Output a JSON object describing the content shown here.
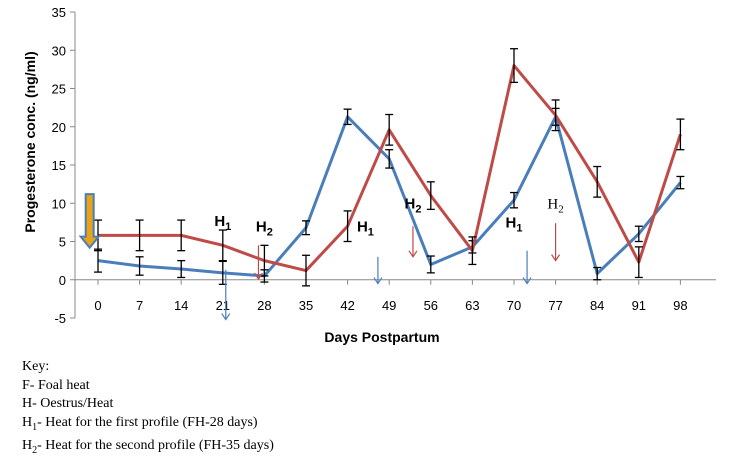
{
  "chart_data": {
    "type": "line",
    "xlabel": "Days Postpartum",
    "ylabel": "Progesterone conc. (ng/ml)",
    "ylim": [
      -5,
      35
    ],
    "yticks": [
      "-5",
      "0",
      "5",
      "10",
      "15",
      "20",
      "25",
      "30",
      "35"
    ],
    "categories": [
      "0",
      "7",
      "14",
      "21",
      "28",
      "35",
      "42",
      "49",
      "56",
      "63",
      "70",
      "77",
      "84",
      "91",
      "98"
    ],
    "grid": false,
    "series": [
      {
        "name": "First profile (FH-28 days)",
        "color": "#4a7ebb",
        "values": [
          2.5,
          1.8,
          1.4,
          0.9,
          0.5,
          6.8,
          21.3,
          15.8,
          2.0,
          4.3,
          10.4,
          21.3,
          0.8,
          6.0,
          12.7
        ],
        "err": [
          1.5,
          1.2,
          1.1,
          1.5,
          0.8,
          0.9,
          1.0,
          1.2,
          1.1,
          0.8,
          1.0,
          1.1,
          0.8,
          1.0,
          0.8
        ]
      },
      {
        "name": "Second profile (FH-35 days)",
        "color": "#be4b48",
        "values": [
          5.8,
          5.8,
          5.8,
          4.5,
          2.5,
          1.2,
          7.0,
          19.6,
          11.0,
          3.8,
          28.0,
          21.5,
          12.8,
          2.3,
          19.0
        ],
        "err": [
          2.0,
          2.0,
          2.0,
          2.0,
          2.0,
          2.0,
          2.0,
          2.0,
          1.8,
          1.8,
          2.2,
          2.0,
          2.0,
          2.0,
          2.0
        ]
      }
    ],
    "annotations": [
      {
        "id": "h1-a",
        "main": "H",
        "sub": "1",
        "style": "bold",
        "color": "#000000",
        "x": 21,
        "y": 7.0
      },
      {
        "id": "h2-a",
        "main": "H",
        "sub": "2",
        "style": "bold",
        "color": "#000000",
        "x": 28,
        "y": 6.3
      },
      {
        "id": "h1-b",
        "main": "H",
        "sub": "1",
        "style": "bold",
        "color": "#000000",
        "x": 45,
        "y": 6.3
      },
      {
        "id": "h2-b",
        "main": "H",
        "sub": "2",
        "style": "bold",
        "color": "#000000",
        "x": 53,
        "y": 9.3
      },
      {
        "id": "h1-c",
        "main": "H",
        "sub": "1",
        "style": "bold",
        "color": "#000000",
        "x": 70,
        "y": 6.8
      },
      {
        "id": "h2-c",
        "main": "H",
        "sub": "2",
        "style": "normal",
        "color": "#000000",
        "x": 77,
        "y": 9.3
      }
    ],
    "event_arrows": [
      {
        "id": "blue-arrow-21",
        "color": "#4a7ebb",
        "x": 21.5,
        "y_top": 1.3,
        "y_bottom": -5.2
      },
      {
        "id": "red-arrow-28",
        "color": "#be4b48",
        "x": 27.0,
        "y_top": 4.5,
        "y_bottom": 0.1
      },
      {
        "id": "blue-arrow-47",
        "color": "#4a7ebb",
        "x": 47.1,
        "y_top": 3.0,
        "y_bottom": -0.5
      },
      {
        "id": "red-arrow-53",
        "color": "#be4b48",
        "x": 53.0,
        "y_top": 7.0,
        "y_bottom": 3.0
      },
      {
        "id": "blue-arrow-72",
        "color": "#4a7ebb",
        "x": 72.2,
        "y_top": 3.8,
        "y_bottom": -0.5
      },
      {
        "id": "red-arrow-77",
        "color": "#be4b48",
        "x": 77.0,
        "y_top": 7.4,
        "y_bottom": 2.5
      }
    ],
    "foal_heat_marker": {
      "color": "#e8a317",
      "outline": "#4a7ebb",
      "x": -1.4,
      "y_top": 11.2,
      "y_bottom": 4.2
    }
  },
  "key": {
    "title": "Key:",
    "lines": [
      {
        "main": "F- Foal heat",
        "sub": "",
        "rest": ""
      },
      {
        "main": "H- Oestrus/Heat",
        "sub": "",
        "rest": ""
      },
      {
        "main": "H",
        "sub": "1",
        "rest": "- Heat for the first profile (FH-28 days)"
      },
      {
        "main": "H",
        "sub": "2",
        "rest": "- Heat for the second profile (FH-35 days)"
      }
    ]
  }
}
